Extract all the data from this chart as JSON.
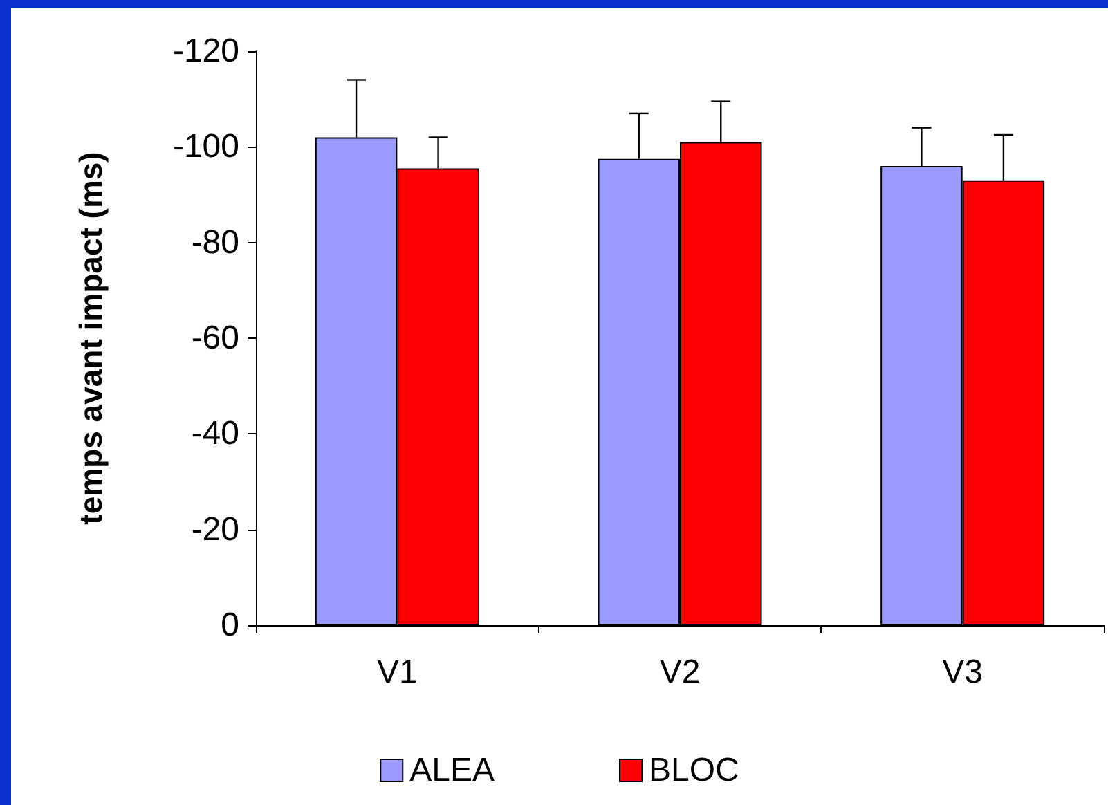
{
  "chart_data": {
    "type": "bar",
    "ylabel": "temps avant impact (ms)",
    "categories": [
      "V1",
      "V2",
      "V3"
    ],
    "series": [
      {
        "name": "ALEA",
        "color": "#9999ff",
        "values": [
          -102,
          -97.5,
          -96
        ],
        "errors": [
          [
            -114,
            -102
          ],
          [
            -107,
            -97.5
          ],
          [
            -104,
            -96
          ]
        ]
      },
      {
        "name": "BLOC",
        "color": "#ff0000",
        "values": [
          -95.5,
          -101,
          -93
        ],
        "errors": [
          [
            -102,
            -95.5
          ],
          [
            -109.5,
            -101
          ],
          [
            -102.5,
            -93
          ]
        ]
      }
    ],
    "ylim": [
      0,
      -120
    ],
    "yticks": [
      0,
      -20,
      -40,
      -60,
      -80,
      -100,
      -120
    ],
    "grid": false,
    "legend": "bottom"
  }
}
